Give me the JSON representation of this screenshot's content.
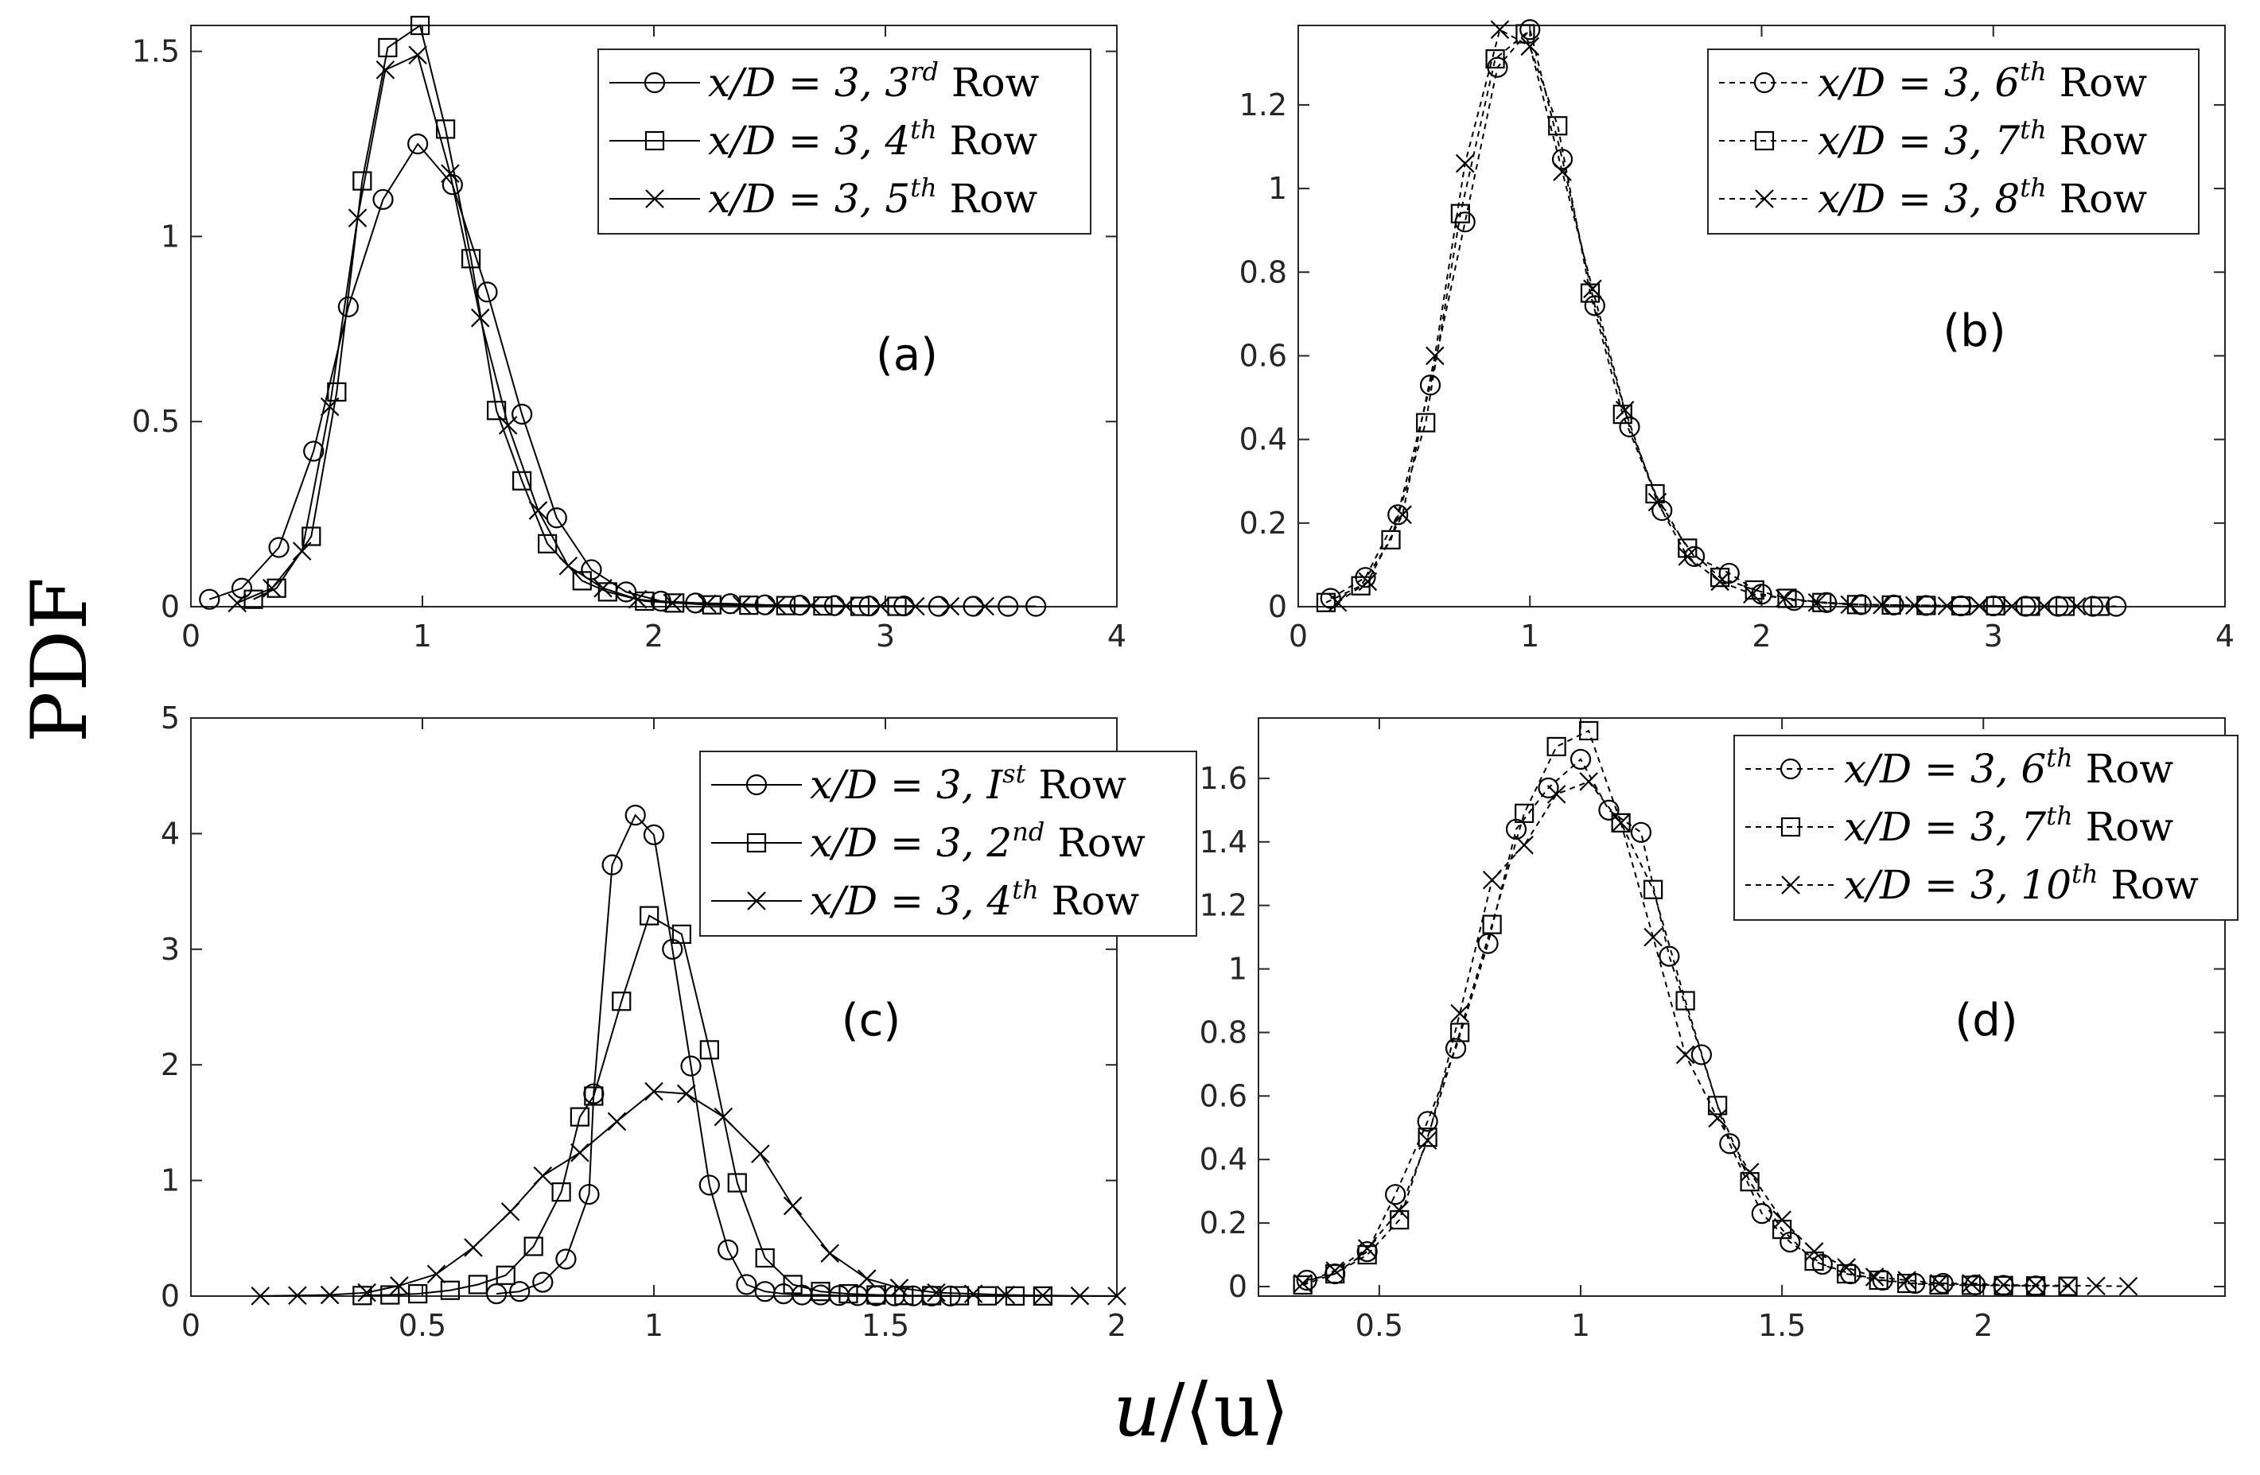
{
  "figure": {
    "ylabel": "PDF",
    "xlabel_main": "u",
    "xlabel_den": "⟨u⟩"
  },
  "chart_data": [
    {
      "id": "a",
      "type": "line",
      "panel_label": "(a)",
      "xlim": [
        0,
        4
      ],
      "ylim": [
        0,
        1.57
      ],
      "xticks": [
        0,
        1,
        2,
        3,
        4
      ],
      "xtick_labels": [
        "0",
        "1",
        "2",
        "3",
        "4"
      ],
      "yticks": [
        0,
        0.5,
        1,
        1.5
      ],
      "ytick_labels": [
        "0",
        "0.5",
        "1",
        "1.5"
      ],
      "legend_position": "top-right",
      "line_style": "solid",
      "series": [
        {
          "name": "x/D = 3, 3rd Row",
          "legend": {
            "pre": "x/D = 3, 3",
            "sup": "rd",
            "post": " Row"
          },
          "marker": "circle",
          "x": [
            0.08,
            0.22,
            0.38,
            0.53,
            0.68,
            0.83,
            0.98,
            1.13,
            1.28,
            1.43,
            1.58,
            1.73,
            1.88,
            2.03,
            2.18,
            2.33,
            2.48,
            2.63,
            2.78,
            2.93,
            3.08,
            3.23,
            3.38,
            3.53,
            3.65
          ],
          "y": [
            0.02,
            0.05,
            0.16,
            0.42,
            0.81,
            1.1,
            1.25,
            1.14,
            0.85,
            0.52,
            0.24,
            0.1,
            0.04,
            0.015,
            0.01,
            0.008,
            0.005,
            0.004,
            0.003,
            0.002,
            0.002,
            0.001,
            0.001,
            0.001,
            0.001
          ]
        },
        {
          "name": "x/D = 3, 4th Row",
          "legend": {
            "pre": "x/D = 3, 4",
            "sup": "th",
            "post": " Row"
          },
          "marker": "square",
          "x": [
            0.27,
            0.37,
            0.52,
            0.63,
            0.74,
            0.85,
            0.99,
            1.1,
            1.21,
            1.32,
            1.43,
            1.54,
            1.69,
            1.8,
            1.96,
            2.09,
            2.25,
            2.41,
            2.57,
            2.73,
            2.89,
            3.05
          ],
          "y": [
            0.02,
            0.05,
            0.19,
            0.58,
            1.15,
            1.51,
            1.57,
            1.29,
            0.94,
            0.53,
            0.34,
            0.17,
            0.07,
            0.04,
            0.015,
            0.01,
            0.005,
            0.004,
            0.003,
            0.002,
            0.001,
            0.001
          ]
        },
        {
          "name": "x/D = 3, 5th Row",
          "legend": {
            "pre": "x/D = 3, 5",
            "sup": "th",
            "post": " Row"
          },
          "marker": "x",
          "x": [
            0.2,
            0.35,
            0.48,
            0.6,
            0.72,
            0.84,
            0.98,
            1.12,
            1.25,
            1.37,
            1.5,
            1.63,
            1.78,
            1.93,
            2.08,
            2.23,
            2.38,
            2.53,
            2.68,
            2.83,
            2.98,
            3.13,
            3.28,
            3.43
          ],
          "y": [
            0.01,
            0.05,
            0.15,
            0.54,
            1.05,
            1.45,
            1.49,
            1.17,
            0.78,
            0.49,
            0.26,
            0.11,
            0.05,
            0.02,
            0.01,
            0.008,
            0.005,
            0.004,
            0.003,
            0.002,
            0.002,
            0.001,
            0.001,
            0.001
          ]
        }
      ]
    },
    {
      "id": "b",
      "type": "line",
      "panel_label": "(b)",
      "xlim": [
        0,
        4
      ],
      "ylim": [
        0,
        1.39
      ],
      "xticks": [
        0,
        1,
        2,
        3,
        4
      ],
      "xtick_labels": [
        "0",
        "1",
        "2",
        "3",
        "4"
      ],
      "yticks": [
        0,
        0.2,
        0.4,
        0.6,
        0.8,
        1,
        1.2
      ],
      "ytick_labels": [
        "0",
        "0.2",
        "0.4",
        "0.6",
        "0.8",
        "1",
        "1.2"
      ],
      "legend_position": "top-right",
      "line_style": "dashed",
      "series": [
        {
          "name": "x/D = 3, 6th Row",
          "legend": {
            "pre": "x/D = 3, 6",
            "sup": "th",
            "post": " Row"
          },
          "marker": "circle",
          "x": [
            0.14,
            0.29,
            0.43,
            0.57,
            0.72,
            0.86,
            1.0,
            1.14,
            1.28,
            1.43,
            1.57,
            1.71,
            1.86,
            2.0,
            2.14,
            2.28,
            2.43,
            2.57,
            2.71,
            2.86,
            3.0,
            3.14,
            3.28,
            3.43,
            3.53
          ],
          "y": [
            0.02,
            0.07,
            0.22,
            0.53,
            0.92,
            1.29,
            1.38,
            1.07,
            0.72,
            0.43,
            0.23,
            0.12,
            0.08,
            0.03,
            0.015,
            0.01,
            0.005,
            0.004,
            0.003,
            0.002,
            0.002,
            0.001,
            0.001,
            0.001,
            0.001
          ]
        },
        {
          "name": "x/D = 3, 7th Row",
          "legend": {
            "pre": "x/D = 3, 7",
            "sup": "th",
            "post": " Row"
          },
          "marker": "square",
          "x": [
            0.12,
            0.27,
            0.4,
            0.55,
            0.7,
            0.85,
            0.98,
            1.12,
            1.26,
            1.4,
            1.54,
            1.68,
            1.82,
            1.97,
            2.11,
            2.26,
            2.41,
            2.56,
            2.71,
            2.86,
            3.01,
            3.16,
            3.31,
            3.46
          ],
          "y": [
            0.01,
            0.05,
            0.16,
            0.44,
            0.94,
            1.31,
            1.37,
            1.15,
            0.75,
            0.46,
            0.27,
            0.14,
            0.07,
            0.04,
            0.02,
            0.01,
            0.005,
            0.004,
            0.003,
            0.002,
            0.002,
            0.001,
            0.001,
            0.001
          ]
        },
        {
          "name": "x/D = 3, 8th Row",
          "legend": {
            "pre": "x/D = 3, 8",
            "sup": "th",
            "post": " Row"
          },
          "marker": "x",
          "x": [
            0.17,
            0.3,
            0.45,
            0.59,
            0.72,
            0.87,
            1.0,
            1.14,
            1.27,
            1.41,
            1.55,
            1.68,
            1.82,
            1.96,
            2.1,
            2.24,
            2.38,
            2.52,
            2.66,
            2.8,
            2.94,
            3.08,
            3.22,
            3.36
          ],
          "y": [
            0.01,
            0.06,
            0.22,
            0.6,
            1.06,
            1.38,
            1.34,
            1.04,
            0.76,
            0.47,
            0.25,
            0.12,
            0.06,
            0.03,
            0.02,
            0.01,
            0.005,
            0.004,
            0.003,
            0.002,
            0.002,
            0.001,
            0.001,
            0.001
          ]
        }
      ]
    },
    {
      "id": "c",
      "type": "line",
      "panel_label": "(c)",
      "xlim": [
        0,
        2
      ],
      "ylim": [
        0,
        5
      ],
      "xticks": [
        0,
        0.5,
        1,
        1.5,
        2
      ],
      "xtick_labels": [
        "0",
        "0.5",
        "1",
        "1.5",
        "2"
      ],
      "yticks": [
        0,
        1,
        2,
        3,
        4,
        5
      ],
      "ytick_labels": [
        "0",
        "1",
        "2",
        "3",
        "4",
        "5"
      ],
      "legend_position": "top-right",
      "line_style": "solid",
      "series": [
        {
          "name": "x/D = 3, Ist Row",
          "legend": {
            "pre": "x/D = 3, I",
            "sup": "st",
            "post": " Row"
          },
          "marker": "circle",
          "x": [
            0.66,
            0.71,
            0.76,
            0.81,
            0.86,
            0.87,
            0.91,
            0.96,
            1.0,
            1.04,
            1.08,
            1.12,
            1.16,
            1.2,
            1.24,
            1.28,
            1.32,
            1.36,
            1.4,
            1.44,
            1.48,
            1.52,
            1.56,
            1.6,
            1.64
          ],
          "y": [
            0.02,
            0.04,
            0.12,
            0.32,
            0.88,
            1.75,
            3.73,
            4.16,
            3.99,
            3.0,
            1.99,
            0.96,
            0.4,
            0.1,
            0.04,
            0.02,
            0.01,
            0.01,
            0.005,
            0.004,
            0.003,
            0.002,
            0.002,
            0.001,
            0.001
          ]
        },
        {
          "name": "x/D = 3, 2nd Row",
          "legend": {
            "pre": "x/D = 3, 2",
            "sup": "nd",
            "post": " Row"
          },
          "marker": "square",
          "x": [
            0.37,
            0.43,
            0.49,
            0.56,
            0.62,
            0.68,
            0.74,
            0.8,
            0.84,
            0.87,
            0.93,
            0.99,
            1.06,
            1.12,
            1.18,
            1.24,
            1.3,
            1.36,
            1.42,
            1.48,
            1.54,
            1.6,
            1.66,
            1.72,
            1.78,
            1.84
          ],
          "y": [
            0.005,
            0.01,
            0.02,
            0.05,
            0.1,
            0.18,
            0.43,
            0.9,
            1.55,
            1.73,
            2.55,
            3.29,
            3.13,
            2.13,
            0.98,
            0.33,
            0.1,
            0.04,
            0.02,
            0.01,
            0.005,
            0.004,
            0.003,
            0.002,
            0.001,
            0.001
          ]
        },
        {
          "name": "x/D = 3, 4th Row",
          "legend": {
            "pre": "x/D = 3, 4",
            "sup": "th",
            "post": " Row"
          },
          "marker": "x",
          "x": [
            0.15,
            0.23,
            0.3,
            0.38,
            0.45,
            0.53,
            0.61,
            0.69,
            0.76,
            0.84,
            0.92,
            1.0,
            1.07,
            1.15,
            1.23,
            1.3,
            1.38,
            1.46,
            1.53,
            1.61,
            1.69,
            1.76,
            1.84,
            1.92,
            2.0
          ],
          "y": [
            0.001,
            0.005,
            0.01,
            0.03,
            0.09,
            0.19,
            0.42,
            0.73,
            1.04,
            1.24,
            1.51,
            1.77,
            1.75,
            1.55,
            1.23,
            0.78,
            0.37,
            0.15,
            0.07,
            0.03,
            0.02,
            0.01,
            0.005,
            0.002,
            0.001
          ]
        }
      ]
    },
    {
      "id": "d",
      "type": "line",
      "panel_label": "(d)",
      "xlim": [
        0.2,
        2.6
      ],
      "ylim": [
        -0.03,
        1.79
      ],
      "xticks": [
        0.5,
        1,
        1.5,
        2
      ],
      "xtick_labels": [
        "0.5",
        "1",
        "1.5",
        "2"
      ],
      "yticks": [
        0,
        0.2,
        0.4,
        0.6,
        0.8,
        1,
        1.2,
        1.4,
        1.6
      ],
      "ytick_labels": [
        "0",
        "0.2",
        "0.4",
        "0.6",
        "0.8",
        "1",
        "1.2",
        "1.4",
        "1.6"
      ],
      "legend_position": "top-right",
      "line_style": "dashed",
      "series": [
        {
          "name": "x/D = 3, 6th Row",
          "legend": {
            "pre": "x/D = 3, 6",
            "sup": "th",
            "post": " Row"
          },
          "marker": "circle",
          "x": [
            0.32,
            0.39,
            0.47,
            0.54,
            0.62,
            0.69,
            0.77,
            0.84,
            0.92,
            1.0,
            1.07,
            1.15,
            1.22,
            1.3,
            1.37,
            1.45,
            1.52,
            1.6,
            1.67,
            1.75,
            1.83,
            1.9,
            1.98,
            2.05,
            2.13
          ],
          "y": [
            0.02,
            0.04,
            0.11,
            0.29,
            0.52,
            0.75,
            1.08,
            1.44,
            1.57,
            1.66,
            1.5,
            1.43,
            1.04,
            0.73,
            0.45,
            0.23,
            0.14,
            0.07,
            0.04,
            0.02,
            0.01,
            0.01,
            0.005,
            0.004,
            0.002
          ]
        },
        {
          "name": "x/D = 3, 7th Row",
          "legend": {
            "pre": "x/D = 3, 7",
            "sup": "th",
            "post": " Row"
          },
          "marker": "square",
          "x": [
            0.31,
            0.39,
            0.47,
            0.55,
            0.62,
            0.7,
            0.78,
            0.86,
            0.94,
            1.02,
            1.1,
            1.18,
            1.26,
            1.34,
            1.42,
            1.5,
            1.58,
            1.66,
            1.74,
            1.81,
            1.89,
            1.97,
            2.05,
            2.13,
            2.21
          ],
          "y": [
            0.005,
            0.04,
            0.1,
            0.21,
            0.47,
            0.8,
            1.14,
            1.49,
            1.7,
            1.75,
            1.46,
            1.25,
            0.9,
            0.57,
            0.33,
            0.18,
            0.08,
            0.04,
            0.02,
            0.01,
            0.005,
            0.004,
            0.003,
            0.002,
            0.001
          ]
        },
        {
          "name": "x/D = 3, 10th Row",
          "legend": {
            "pre": "x/D = 3, 10",
            "sup": "th",
            "post": " Row"
          },
          "marker": "x",
          "x": [
            0.31,
            0.39,
            0.47,
            0.55,
            0.62,
            0.7,
            0.78,
            0.86,
            0.94,
            1.02,
            1.1,
            1.18,
            1.26,
            1.34,
            1.42,
            1.5,
            1.58,
            1.66,
            1.73,
            1.81,
            1.89,
            1.97,
            2.05,
            2.13,
            2.21,
            2.28,
            2.36
          ],
          "y": [
            0.01,
            0.05,
            0.12,
            0.24,
            0.46,
            0.86,
            1.28,
            1.39,
            1.55,
            1.59,
            1.46,
            1.1,
            0.73,
            0.53,
            0.36,
            0.21,
            0.11,
            0.06,
            0.03,
            0.02,
            0.01,
            0.01,
            0.005,
            0.004,
            0.003,
            0.002,
            0.001
          ]
        }
      ]
    }
  ]
}
